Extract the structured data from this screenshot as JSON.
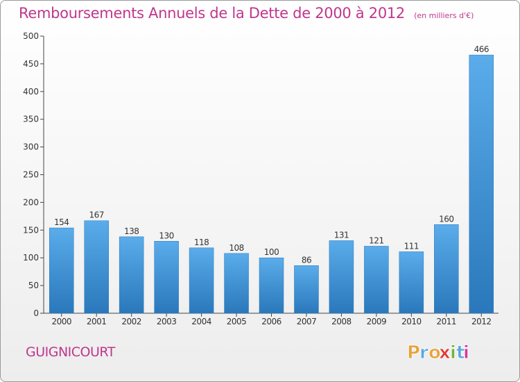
{
  "chart_data": {
    "type": "bar",
    "title": "Remboursements Annuels de la Dette de 2000 à 2012",
    "subtitle": "(en milliers d'€)",
    "categories": [
      "2000",
      "2001",
      "2002",
      "2003",
      "2004",
      "2005",
      "2006",
      "2007",
      "2008",
      "2009",
      "2010",
      "2011",
      "2012"
    ],
    "values": [
      154,
      167,
      138,
      130,
      118,
      108,
      100,
      86,
      131,
      121,
      111,
      160,
      466
    ],
    "ylim": [
      0,
      500
    ],
    "yticks": [
      0,
      50,
      100,
      150,
      200,
      250,
      300,
      350,
      400,
      450,
      500
    ],
    "grid": false,
    "bar_color": "#3a8fd4",
    "xlabel": "",
    "ylabel": ""
  },
  "footer": {
    "commune": "GUIGNICOURT",
    "logo_text": "Proxiti"
  },
  "colors": {
    "accent": "#c0368c",
    "bar": "#3a8fd4",
    "logo": [
      "#e8a33a",
      "#5aa8e0",
      "#e8a33a",
      "#e03a3a",
      "#6fb43f",
      "#5aa8e0",
      "#d13a9a"
    ]
  }
}
